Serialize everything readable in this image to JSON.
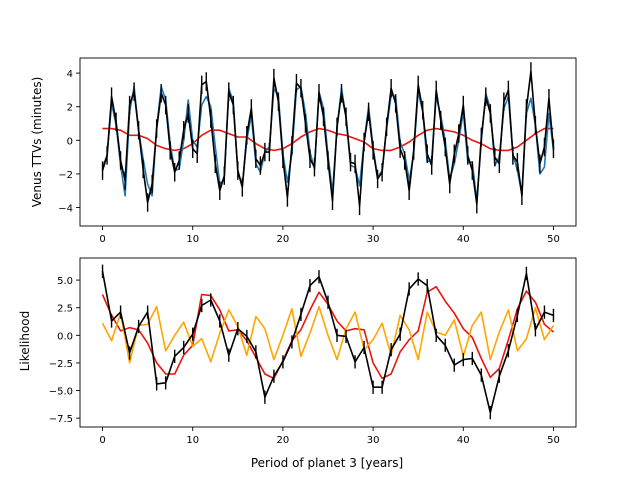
{
  "colors": {
    "blue": "#1f77b4",
    "red": "#e8150f",
    "black": "#000000",
    "orange": "#ffa500"
  },
  "chart_data": [
    {
      "type": "line",
      "xlabel": "",
      "ylabel": "Venus TTVs (minutes)",
      "xlim": [
        -2.5,
        52.5
      ],
      "ylim": [
        -5.1,
        4.9
      ],
      "xticks": [
        0,
        10,
        20,
        30,
        40,
        50
      ],
      "yticks": [
        -4,
        -2,
        0,
        2,
        4
      ],
      "grid": false,
      "series": [
        {
          "color": "blue",
          "x": [
            0,
            0.5,
            1,
            1.5,
            2,
            2.5,
            3,
            3.5,
            4,
            4.5,
            5,
            5.5,
            6,
            6.5,
            7,
            7.5,
            8,
            8.5,
            9,
            9.5,
            10,
            10.5,
            11,
            11.5,
            12,
            12.5,
            13,
            13.5,
            14,
            14.5,
            15,
            15.5,
            16,
            16.5,
            17,
            17.5,
            18,
            18.5,
            19,
            19.5,
            20,
            20.5,
            21,
            21.5,
            22,
            22.5,
            23,
            23.5,
            24,
            24.5,
            25,
            25.5,
            26,
            26.5,
            27,
            27.5,
            28,
            28.5,
            29,
            29.5,
            30,
            30.5,
            31,
            31.5,
            32,
            32.5,
            33,
            33.5,
            34,
            34.5,
            35,
            35.5,
            36,
            36.5,
            37,
            37.5,
            38,
            38.5,
            39,
            39.5,
            40,
            40.5,
            41,
            41.5,
            42,
            42.5,
            43,
            43.5,
            44,
            44.5,
            45,
            45.5,
            46,
            46.5,
            47,
            47.5,
            48,
            48.5,
            49,
            49.5,
            50
          ],
          "y": [
            -1.6,
            -0.9,
            2.2,
            0.9,
            -1.5,
            -3.3,
            1.7,
            3.2,
            0.6,
            -1.1,
            -2.6,
            -3.3,
            0.8,
            3.2,
            2.4,
            -0.2,
            -1.8,
            -1.7,
            0.0,
            2.4,
            0.0,
            -0.4,
            2.1,
            2.6,
            2.0,
            -0.4,
            -2.6,
            -2.3,
            3.1,
            2.3,
            -1.8,
            -2.7,
            0.0,
            1.5,
            -1.4,
            -1.9,
            -0.7,
            -0.4,
            3.1,
            2.6,
            -0.8,
            -2.5,
            -0.8,
            3.0,
            3.2,
            1.6,
            -0.7,
            -1.7,
            2.9,
            1.9,
            -0.9,
            -3.1,
            0.7,
            3.1,
            1.4,
            -1.5,
            -1.6,
            -2.7,
            -0.1,
            2.0,
            -0.4,
            -2.2,
            -1.8,
            0.7,
            2.7,
            2.6,
            -0.1,
            -0.8,
            -2.4,
            -0.8,
            2.9,
            1.7,
            -1.3,
            -1.1,
            2.6,
            1.5,
            0.0,
            -2.3,
            -1.4,
            0.0,
            1.7,
            -1.3,
            -1.3,
            -3.6,
            -0.1,
            2.8,
            1.9,
            -1.5,
            -1.0,
            1.9,
            2.6,
            -0.8,
            -1.8,
            -3.2,
            1.6,
            2.5,
            0.9,
            -2.0,
            -1.6,
            1.6,
            -0.6
          ]
        },
        {
          "color": "black",
          "errorbars": true,
          "x": [
            0,
            0.5,
            1,
            1.5,
            2,
            2.5,
            3,
            3.5,
            4,
            4.5,
            5,
            5.5,
            6,
            6.5,
            7,
            7.5,
            8,
            8.5,
            9,
            9.5,
            10,
            10.5,
            11,
            11.5,
            12,
            12.5,
            13,
            13.5,
            14,
            14.5,
            15,
            15.5,
            16,
            16.5,
            17,
            17.5,
            18,
            18.5,
            19,
            19.5,
            20,
            20.5,
            21,
            21.5,
            22,
            22.5,
            23,
            23.5,
            24,
            24.5,
            25,
            25.5,
            26,
            26.5,
            27,
            27.5,
            28,
            28.5,
            29,
            29.5,
            30,
            30.5,
            31,
            31.5,
            32,
            32.5,
            33,
            33.5,
            34,
            34.5,
            35,
            35.5,
            36,
            36.5,
            37,
            37.5,
            38,
            38.5,
            39,
            39.5,
            40,
            40.5,
            41,
            41.5,
            42,
            42.5,
            43,
            43.5,
            44,
            44.5,
            45,
            45.5,
            46,
            46.5,
            47,
            47.5,
            48,
            48.5,
            49,
            49.5,
            50
          ],
          "y": [
            -1.8,
            -0.9,
            2.6,
            1.1,
            -1.2,
            -2.4,
            2.1,
            2.9,
            0.6,
            -1.7,
            -3.7,
            -2.6,
            0.7,
            2.8,
            2.1,
            -0.6,
            -1.9,
            -1.2,
            0.6,
            1.6,
            -0.5,
            -0.8,
            3.3,
            3.5,
            1.3,
            -1.4,
            -3.0,
            -2.1,
            2.9,
            2.1,
            -1.8,
            -2.8,
            0.3,
            1.9,
            -1.1,
            -1.5,
            -0.7,
            -0.7,
            3.7,
            2.3,
            -1.1,
            -3.4,
            -0.3,
            3.4,
            3.1,
            1.0,
            -1.1,
            -1.6,
            2.8,
            1.4,
            -1.2,
            -3.6,
            0.8,
            2.8,
            1.4,
            -1.3,
            -1.4,
            -3.9,
            -0.1,
            1.7,
            -0.6,
            -2.3,
            -1.9,
            0.8,
            3.1,
            2.2,
            -0.5,
            -1.2,
            -3.0,
            -0.6,
            3.3,
            1.8,
            -0.8,
            -1.5,
            3.0,
            1.2,
            -0.4,
            -2.6,
            -0.8,
            0.4,
            2.1,
            -0.9,
            -1.8,
            -3.8,
            0.2,
            2.6,
            1.6,
            -1.0,
            -1.4,
            2.3,
            3.0,
            -0.9,
            -1.3,
            -3.3,
            1.9,
            4.1,
            0.9,
            -1.4,
            -0.4,
            2.5,
            -0.5
          ],
          "err": 0.55
        },
        {
          "color": "red",
          "x": [
            0,
            1,
            2,
            3,
            4,
            5,
            6,
            7,
            8,
            9,
            10,
            11,
            12,
            13,
            14,
            15,
            16,
            17,
            18,
            19,
            20,
            21,
            22,
            23,
            24,
            25,
            26,
            27,
            28,
            29,
            30,
            31,
            32,
            33,
            34,
            35,
            36,
            37,
            38,
            39,
            40,
            41,
            42,
            43,
            44,
            45,
            46,
            47,
            48,
            49,
            50
          ],
          "y": [
            0.7,
            0.7,
            0.6,
            0.3,
            0.3,
            0.1,
            -0.3,
            -0.5,
            -0.6,
            -0.5,
            -0.2,
            0.3,
            0.6,
            0.6,
            0.4,
            0.2,
            0.2,
            -0.2,
            -0.5,
            -0.6,
            -0.5,
            -0.2,
            0.2,
            0.5,
            0.7,
            0.6,
            0.4,
            0.3,
            0.1,
            -0.1,
            -0.5,
            -0.6,
            -0.6,
            -0.4,
            -0.1,
            0.3,
            0.6,
            0.7,
            0.6,
            0.5,
            0.3,
            0.0,
            -0.2,
            -0.5,
            -0.6,
            -0.6,
            -0.4,
            0.0,
            0.4,
            0.7,
            0.7
          ]
        }
      ]
    },
    {
      "type": "line",
      "xlabel": "Period of planet 3 [years]",
      "ylabel": "Likelihood",
      "xlim": [
        -2.5,
        52.5
      ],
      "ylim": [
        -8.3,
        7.0
      ],
      "xticks": [
        0,
        10,
        20,
        30,
        40,
        50
      ],
      "yticks": [
        -7.5,
        -5.0,
        -2.5,
        0.0,
        2.5,
        5.0
      ],
      "grid": false,
      "series": [
        {
          "color": "orange",
          "x": [
            0,
            1,
            2,
            3,
            4,
            5,
            6,
            7,
            8,
            9,
            10,
            11,
            12,
            13,
            14,
            15,
            16,
            17,
            18,
            19,
            20,
            21,
            22,
            23,
            24,
            25,
            26,
            27,
            28,
            29,
            30,
            31,
            32,
            33,
            34,
            35,
            36,
            37,
            38,
            39,
            40,
            41,
            42,
            43,
            44,
            45,
            46,
            47,
            48,
            49,
            50
          ],
          "y": [
            1.1,
            -0.5,
            2.0,
            -2.5,
            0.9,
            1.0,
            2.6,
            -1.4,
            0.0,
            1.2,
            -1.0,
            -0.3,
            -2.4,
            0.2,
            2.3,
            0.8,
            -1.8,
            1.7,
            0.6,
            -2.2,
            0.0,
            2.4,
            -1.9,
            0.2,
            2.6,
            0.0,
            -2.2,
            0.6,
            2.1,
            -1.3,
            -0.4,
            1.1,
            -1.8,
            1.8,
            0.5,
            -2.2,
            2.1,
            0.3,
            0.0,
            1.4,
            -1.9,
            0.9,
            2.1,
            -2.2,
            0.3,
            2.3,
            -1.4,
            -0.3,
            2.5,
            -0.4,
            0.9
          ]
        },
        {
          "color": "red",
          "x": [
            0,
            1,
            2,
            3,
            4,
            5,
            6,
            7,
            8,
            9,
            10,
            11,
            12,
            13,
            14,
            15,
            16,
            17,
            18,
            19,
            20,
            21,
            22,
            23,
            24,
            25,
            26,
            27,
            28,
            29,
            30,
            31,
            32,
            33,
            34,
            35,
            36,
            37,
            38,
            39,
            40,
            41,
            42,
            43,
            44,
            45,
            46,
            47,
            48,
            49,
            50
          ],
          "y": [
            3.7,
            1.8,
            0.4,
            0.7,
            0.5,
            -0.7,
            -2.5,
            -3.5,
            -3.5,
            -1.8,
            -0.9,
            3.7,
            3.6,
            2.3,
            0.4,
            0.5,
            -0.5,
            -2.0,
            -3.5,
            -3.9,
            -2.3,
            -0.5,
            0.5,
            2.3,
            3.9,
            2.8,
            1.3,
            0.4,
            0.6,
            0.5,
            -2.5,
            -3.9,
            -3.5,
            -1.5,
            -0.4,
            0.4,
            3.9,
            4.4,
            3.1,
            2.0,
            0.6,
            -0.2,
            -2.1,
            -3.8,
            -3.0,
            -0.4,
            2.4,
            4.0,
            3.0,
            1.0,
            0.3
          ]
        },
        {
          "color": "black",
          "errorbars": true,
          "x": [
            0,
            1,
            2,
            3,
            4,
            5,
            6,
            7,
            8,
            9,
            10,
            11,
            12,
            13,
            14,
            15,
            16,
            17,
            18,
            19,
            20,
            21,
            22,
            23,
            24,
            25,
            26,
            27,
            28,
            29,
            30,
            31,
            32,
            33,
            34,
            35,
            36,
            37,
            38,
            39,
            40,
            41,
            42,
            43,
            44,
            45,
            46,
            47,
            48,
            49,
            50
          ],
          "y": [
            5.8,
            1.3,
            2.1,
            -1.6,
            0.8,
            2.1,
            -4.4,
            -4.3,
            -1.9,
            -1.1,
            0.1,
            2.7,
            3.2,
            1.3,
            -1.8,
            0.6,
            -0.1,
            -1.5,
            -5.6,
            -3.7,
            -2.4,
            -0.6,
            1.9,
            4.5,
            5.3,
            3.0,
            0.0,
            -0.1,
            -2.4,
            -1.1,
            -4.7,
            -4.7,
            -1.3,
            0.1,
            4.2,
            5.1,
            4.5,
            0.0,
            -0.9,
            -2.7,
            -2.2,
            -2.1,
            -3.6,
            -7.0,
            -3.7,
            -1.4,
            1.8,
            5.6,
            0.5,
            2.1,
            1.8
          ],
          "err": 0.6
        }
      ]
    }
  ]
}
